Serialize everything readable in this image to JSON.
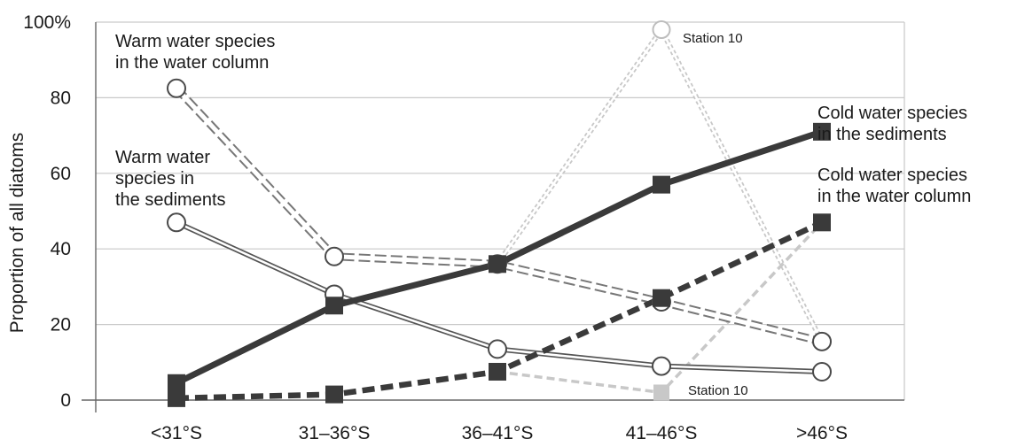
{
  "chart_data": {
    "type": "line",
    "title": "",
    "xlabel": "",
    "ylabel": "Proportion of all diatoms",
    "ylim": [
      0,
      100
    ],
    "yticks": [
      "0",
      "20",
      "40",
      "60",
      "80",
      "100%"
    ],
    "categories": [
      "<31°S",
      "31–36°S",
      "36–41°S",
      "41–46°S",
      ">46°S"
    ],
    "grid": true,
    "series": [
      {
        "name": "Warm water species in the water column",
        "label_lines": [
          "Warm water species",
          "in the water column"
        ],
        "style": "dashed-hollow",
        "marker": "circle",
        "color": "#777777",
        "values": [
          82.5,
          38,
          36,
          26,
          15.5
        ]
      },
      {
        "name": "Warm water species in the sediments",
        "label_lines": [
          "Warm water",
          "species in",
          "the sediments"
        ],
        "style": "solid-hollow",
        "marker": "circle",
        "color": "#555555",
        "values": [
          47,
          28,
          13.5,
          9,
          7.5
        ]
      },
      {
        "name": "Cold water species in the sediments",
        "label_lines": [
          "Cold water species",
          "in the sediments"
        ],
        "style": "solid",
        "marker": "square",
        "color": "#3a3a3a",
        "values": [
          4.5,
          25,
          36,
          57,
          71
        ]
      },
      {
        "name": "Cold water species in the water column",
        "label_lines": [
          "Cold water species",
          "in the water column"
        ],
        "style": "dashed",
        "marker": "square",
        "color": "#3a3a3a",
        "values": [
          0.5,
          1.5,
          7.5,
          27,
          47
        ]
      }
    ],
    "station_10": {
      "label": "Station 10",
      "warm_water_column_value": 98,
      "cold_water_column_value": 2,
      "color": "#c8c8c8"
    }
  }
}
